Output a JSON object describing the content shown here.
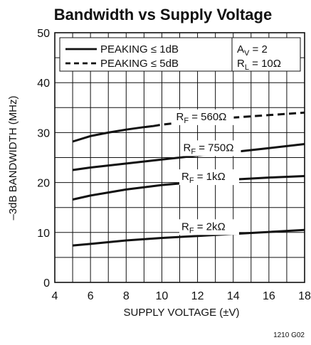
{
  "chart_data": {
    "type": "line",
    "title": "Bandwidth vs Supply Voltage",
    "xlabel": "SUPPLY VOLTAGE (±V)",
    "ylabel": "–3dB BANDWIDTH (MHz)",
    "xlim": [
      4,
      18
    ],
    "ylim": [
      0,
      50
    ],
    "x_ticks": [
      "4",
      "6",
      "8",
      "10",
      "12",
      "14",
      "16",
      "18"
    ],
    "y_ticks": [
      "0",
      "10",
      "20",
      "30",
      "40",
      "50"
    ],
    "grid": true,
    "legend": {
      "placement": "top-left",
      "entries": [
        {
          "label": "PEAKING ≤ 1dB",
          "style": "solid"
        },
        {
          "label": "PEAKING ≤ 5dB",
          "style": "dashed"
        }
      ]
    },
    "conditions": {
      "line1_main": "A",
      "line1_sub": "V",
      "line1_rest": " = 2",
      "line2_main": "R",
      "line2_sub": "L",
      "line2_rest": " = 10Ω"
    },
    "series": [
      {
        "name": "R_F = 560Ω",
        "label_main": "R",
        "label_sub": "F",
        "label_rest": " = 560Ω",
        "label_at": [
          10.8,
          32.5
        ],
        "segments": [
          {
            "style": "solid",
            "x": [
              5,
              6,
              7,
              8,
              9,
              9.5
            ],
            "y": [
              28.2,
              29.3,
              30.0,
              30.6,
              31.1,
              31.3
            ]
          },
          {
            "style": "dashed",
            "x": [
              9.5,
              10,
              12,
              14,
              16,
              18
            ],
            "y": [
              31.3,
              31.6,
              32.4,
              33.0,
              33.5,
              34.0
            ]
          }
        ]
      },
      {
        "name": "R_F = 750Ω",
        "label_main": "R",
        "label_sub": "F",
        "label_rest": " = 750Ω",
        "label_at": [
          11.2,
          26.3
        ],
        "segments": [
          {
            "style": "solid",
            "x": [
              5,
              6,
              8,
              10,
              12,
              14,
              16,
              18
            ],
            "y": [
              22.5,
              23.0,
              23.8,
              24.6,
              25.4,
              26.1,
              26.9,
              27.7
            ]
          }
        ]
      },
      {
        "name": "R_F = 1kΩ",
        "label_main": "R",
        "label_sub": "F",
        "label_rest": " = 1kΩ",
        "label_at": [
          11.1,
          20.5
        ],
        "segments": [
          {
            "style": "solid",
            "x": [
              5,
              6,
              8,
              10,
              12,
              14,
              16,
              18
            ],
            "y": [
              16.6,
              17.4,
              18.6,
              19.5,
              20.1,
              20.6,
              21.0,
              21.3
            ]
          }
        ]
      },
      {
        "name": "R_F = 2kΩ",
        "label_main": "R",
        "label_sub": "F",
        "label_rest": " = 2kΩ",
        "label_at": [
          11.1,
          10.5
        ],
        "segments": [
          {
            "style": "solid",
            "x": [
              5,
              6,
              8,
              10,
              12,
              14,
              16,
              18
            ],
            "y": [
              7.4,
              7.7,
              8.4,
              8.9,
              9.3,
              9.7,
              10.1,
              10.5
            ]
          }
        ]
      }
    ]
  },
  "figure_id": "1210 G02"
}
